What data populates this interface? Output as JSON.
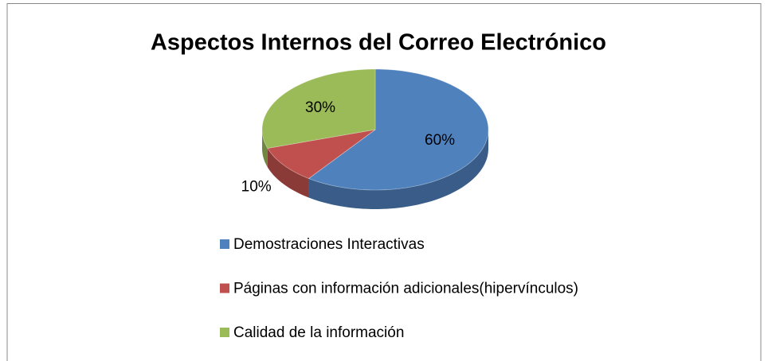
{
  "chart_data": {
    "type": "pie",
    "title": "Aspectos Internos del Correo Electrónico",
    "categories": [
      "Demostraciones Interactivas",
      "Páginas con información adicionales(hipervínculos)",
      "Calidad de la información"
    ],
    "values": [
      60,
      10,
      30
    ],
    "value_labels": [
      "60%",
      "10%",
      "30%"
    ],
    "colors": [
      "#4f81bd",
      "#c0504d",
      "#9bbb59"
    ],
    "legend": "bottom"
  }
}
